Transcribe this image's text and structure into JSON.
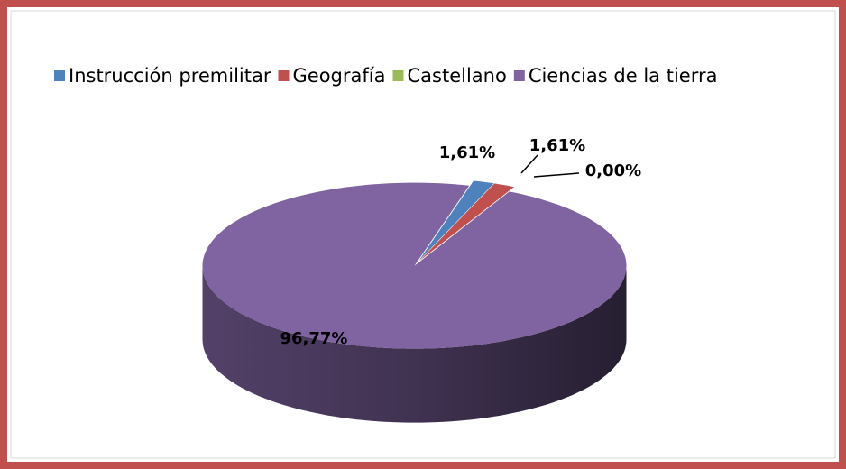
{
  "chart_data": {
    "type": "pie",
    "categories": [
      "Instrucción premilitar",
      "Geografía",
      "Castellano",
      "Ciencias de la tierra"
    ],
    "values": [
      1.61,
      1.61,
      0,
      96.77
    ],
    "value_labels": [
      "1,61%",
      "1,61%",
      "0,00%",
      "96,77%"
    ],
    "colors": [
      "#4f81bd",
      "#c0504d",
      "#9bbb59",
      "#8064a2"
    ],
    "legend": "top"
  }
}
